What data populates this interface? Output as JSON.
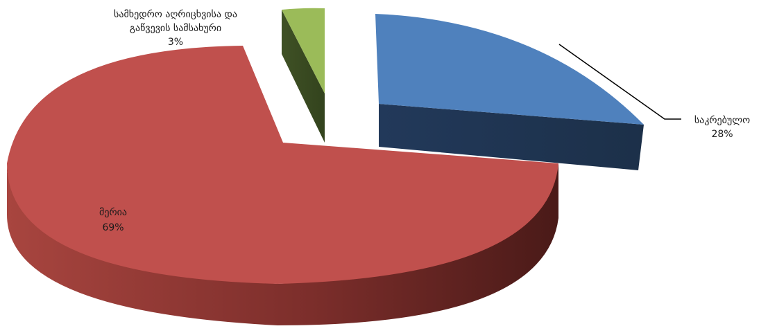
{
  "chart_data": {
    "type": "pie",
    "style": "3d-exploded",
    "title": "",
    "slices": [
      {
        "label": "საკრებულო",
        "value": 28,
        "value_label": "28%",
        "color": "#4F81BD",
        "side_color": "#1F3350"
      },
      {
        "label": "მერია",
        "value": 69,
        "value_label": "69%",
        "color": "#C0504D",
        "side_color": "#6E2624"
      },
      {
        "label_lines": [
          "სამხედრო აღრიცხვისა და",
          "გაწვევის სამსახური"
        ],
        "value": 3,
        "value_label": "3%",
        "color": "#9BBB59",
        "side_color": "#3C4D22"
      }
    ],
    "legend": "none"
  }
}
